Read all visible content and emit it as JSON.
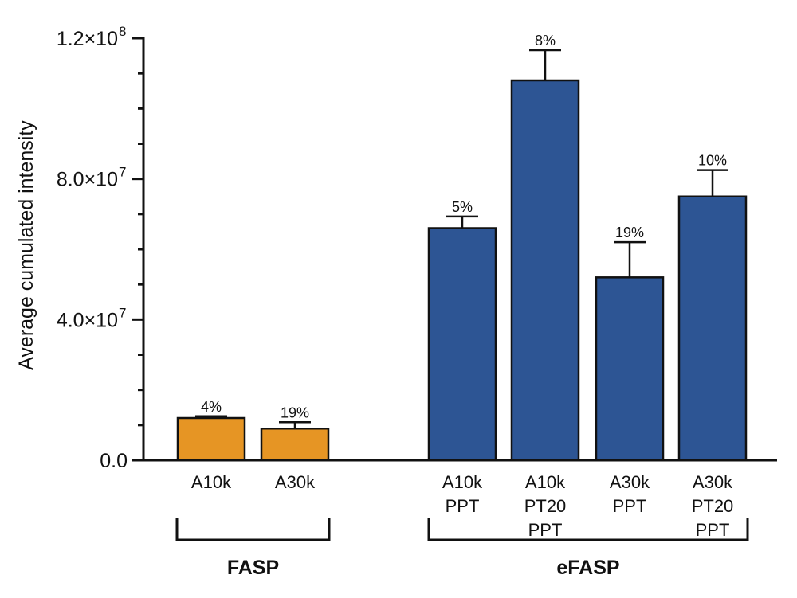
{
  "chart_data": {
    "type": "bar",
    "title": "",
    "xlabel": "",
    "ylabel": "Average cumulated intensity",
    "ylim": [
      0,
      120000000
    ],
    "y_ticks": [
      {
        "value": 0,
        "label": "0.0"
      },
      {
        "value": 40000000,
        "label": "4.0×10",
        "exp": "7"
      },
      {
        "value": 80000000,
        "label": "8.0×10",
        "exp": "7"
      },
      {
        "value": 120000000,
        "label": "1.2×10",
        "exp": "8"
      }
    ],
    "minor_tick_step": 10000000,
    "bars": [
      {
        "label_lines": [
          "A10k"
        ],
        "value": 12000000,
        "error": 500000,
        "cv_label": "4%",
        "group": "FASP",
        "color": "#E69524"
      },
      {
        "label_lines": [
          "A30k"
        ],
        "value": 9000000,
        "error": 1800000,
        "cv_label": "19%",
        "group": "FASP",
        "color": "#E69524"
      },
      {
        "label_lines": [
          "A10k",
          "PPT"
        ],
        "value": 66000000,
        "error": 3300000,
        "cv_label": "5%",
        "group": "eFASP",
        "color": "#2D5594"
      },
      {
        "label_lines": [
          "A10k",
          "PT20",
          "PPT"
        ],
        "value": 108000000,
        "error": 8600000,
        "cv_label": "8%",
        "group": "eFASP",
        "color": "#2D5594"
      },
      {
        "label_lines": [
          "A30k",
          "PPT"
        ],
        "value": 52000000,
        "error": 10000000,
        "cv_label": "19%",
        "group": "eFASP",
        "color": "#2D5594"
      },
      {
        "label_lines": [
          "A30k",
          "PT20",
          "PPT"
        ],
        "value": 75000000,
        "error": 7500000,
        "cv_label": "10%",
        "group": "eFASP",
        "color": "#2D5594"
      }
    ],
    "groups": [
      {
        "name": "FASP",
        "label": "FASP"
      },
      {
        "name": "eFASP",
        "label": "eFASP"
      }
    ]
  }
}
